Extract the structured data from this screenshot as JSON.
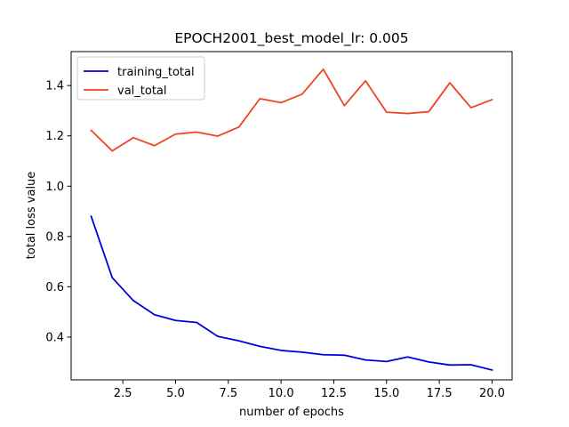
{
  "chart_data": {
    "type": "line",
    "title": "EPOCH2001_best_model_lr: 0.005",
    "xlabel": "number of epochs",
    "ylabel": "total loss value",
    "xlim": [
      0.05,
      20.95
    ],
    "ylim": [
      0.23,
      1.535
    ],
    "xticks": [
      2.5,
      5.0,
      7.5,
      10.0,
      12.5,
      15.0,
      17.5,
      20.0
    ],
    "xtick_labels": [
      "2.5",
      "5.0",
      "7.5",
      "10.0",
      "12.5",
      "15.0",
      "17.5",
      "20.0"
    ],
    "yticks": [
      0.4,
      0.6,
      0.8,
      1.0,
      1.2,
      1.4
    ],
    "ytick_labels": [
      "0.4",
      "0.6",
      "0.8",
      "1.0",
      "1.2",
      "1.4"
    ],
    "grid": false,
    "legend_position": "top-left",
    "x": [
      1,
      2,
      3,
      4,
      5,
      6,
      7,
      8,
      9,
      10,
      11,
      12,
      13,
      14,
      15,
      16,
      17,
      18,
      19,
      20
    ],
    "series": [
      {
        "name": "training_total",
        "color": "#0000dd",
        "values": [
          0.88,
          0.636,
          0.545,
          0.489,
          0.466,
          0.458,
          0.403,
          0.385,
          0.363,
          0.347,
          0.34,
          0.33,
          0.328,
          0.309,
          0.303,
          0.321,
          0.301,
          0.289,
          0.29,
          0.269
        ]
      },
      {
        "name": "val_total",
        "color": "#ee4422",
        "values": [
          1.222,
          1.14,
          1.193,
          1.161,
          1.207,
          1.215,
          1.199,
          1.235,
          1.348,
          1.332,
          1.366,
          1.465,
          1.32,
          1.419,
          1.294,
          1.289,
          1.296,
          1.411,
          1.312,
          1.344
        ]
      }
    ]
  }
}
